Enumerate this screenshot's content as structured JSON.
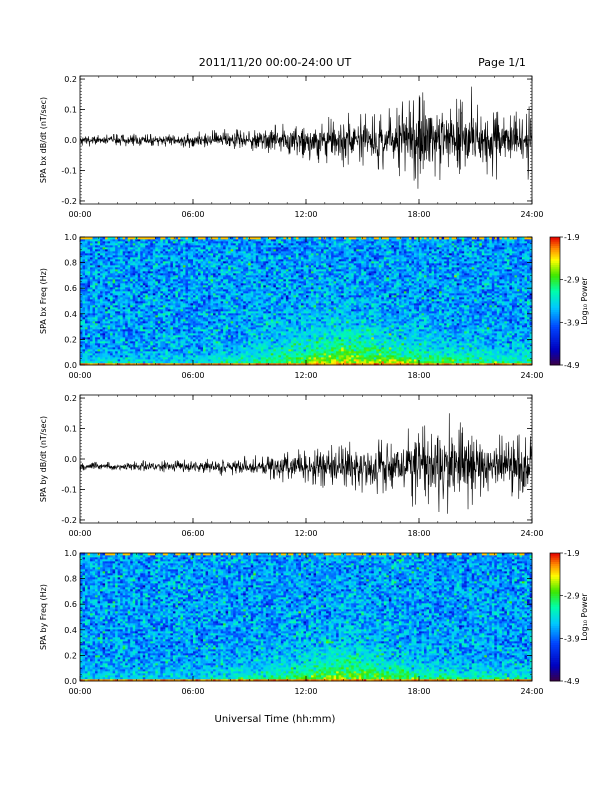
{
  "header": {
    "title": "2011/11/20  00:00-24:00 UT",
    "page": "Page 1/1"
  },
  "xlabel": "Universal Time (hh:mm)",
  "colorbar_label": "Log₁₀ Power",
  "chart_data": [
    {
      "type": "line",
      "name": "bx-dbdt",
      "ylabel": "SPA bx dB/dt (nT/sec)",
      "x_ticks": [
        "00:00",
        "06:00",
        "12:00",
        "18:00",
        "24:00"
      ],
      "y_ticks": [
        -0.2,
        -0.1,
        0.0,
        0.1,
        0.2
      ],
      "y_tick_labels": [
        "-0.2",
        "-0.1",
        "0.0",
        "0.1",
        "0.2"
      ],
      "xlim_hours": [
        0,
        24
      ],
      "ylim": [
        -0.21,
        0.21
      ],
      "baseline": 0.0,
      "envelope": {
        "hours": [
          0,
          2,
          4,
          6,
          8,
          10,
          12,
          14,
          16,
          17,
          18,
          19,
          20,
          21,
          22,
          23,
          24
        ],
        "amplitude": [
          0.012,
          0.012,
          0.013,
          0.015,
          0.022,
          0.03,
          0.04,
          0.05,
          0.06,
          0.075,
          0.09,
          0.085,
          0.075,
          0.07,
          0.075,
          0.07,
          0.065
        ]
      },
      "extremes": [
        {
          "hour": 17.95,
          "value": -0.16
        },
        {
          "hour": 17.7,
          "value": 0.13
        },
        {
          "hour": 20.8,
          "value": 0.175
        },
        {
          "hour": 20.0,
          "value": 0.135
        },
        {
          "hour": 23.8,
          "value": -0.13
        }
      ]
    },
    {
      "type": "heatmap",
      "name": "bx-spectrogram",
      "ylabel": "SPA bx Freq (Hz)",
      "x_ticks": [
        "00:00",
        "06:00",
        "12:00",
        "18:00",
        "24:00"
      ],
      "y_ticks": [
        0.0,
        0.2,
        0.4,
        0.6,
        0.8,
        1.0
      ],
      "y_tick_labels": [
        "0.0",
        "0.2",
        "0.4",
        "0.6",
        "0.8",
        "1.0"
      ],
      "xlim_hours": [
        0,
        24
      ],
      "ylim": [
        0,
        1
      ],
      "colorbar": {
        "min": -4.9,
        "max": -1.9,
        "ticks": [
          -1.9,
          -2.9,
          -3.9,
          -4.9
        ],
        "tick_labels": [
          "-1.9",
          "-2.9",
          "-3.9",
          "-4.9"
        ]
      },
      "background_level": -3.7,
      "low_freq_enhancement": {
        "hours": [
          0,
          6,
          10,
          12,
          14,
          16,
          18,
          20,
          22,
          24
        ],
        "level": [
          -3.2,
          -3.2,
          -2.9,
          -2.6,
          -2.4,
          -2.5,
          -2.6,
          -2.8,
          -3.0,
          -3.1
        ],
        "extent_hz": [
          0.05,
          0.06,
          0.12,
          0.17,
          0.2,
          0.15,
          0.12,
          0.1,
          0.1,
          0.1
        ]
      }
    },
    {
      "type": "line",
      "name": "by-dbdt",
      "ylabel": "SPA by dB/dt (nT/sec)",
      "x_ticks": [
        "00:00",
        "06:00",
        "12:00",
        "18:00",
        "24:00"
      ],
      "y_ticks": [
        -0.2,
        -0.1,
        0.0,
        0.1,
        0.2
      ],
      "y_tick_labels": [
        "-0.2",
        "-0.1",
        "0.0",
        "0.1",
        "0.2"
      ],
      "xlim_hours": [
        0,
        24
      ],
      "ylim": [
        -0.21,
        0.21
      ],
      "baseline": -0.025,
      "envelope": {
        "hours": [
          0,
          2,
          4,
          6,
          8,
          10,
          12,
          14,
          16,
          17,
          18,
          19,
          20,
          21,
          22,
          23,
          24
        ],
        "amplitude": [
          0.01,
          0.01,
          0.012,
          0.013,
          0.018,
          0.025,
          0.035,
          0.045,
          0.055,
          0.065,
          0.08,
          0.09,
          0.085,
          0.075,
          0.07,
          0.065,
          0.06
        ]
      },
      "extremes": [
        {
          "hour": 19.6,
          "value": 0.15
        },
        {
          "hour": 20.2,
          "value": 0.12
        },
        {
          "hour": 20.6,
          "value": -0.165
        },
        {
          "hour": 18.3,
          "value": 0.11
        }
      ]
    },
    {
      "type": "heatmap",
      "name": "by-spectrogram",
      "ylabel": "SPA by Freq (Hz)",
      "x_ticks": [
        "00:00",
        "06:00",
        "12:00",
        "18:00",
        "24:00"
      ],
      "y_ticks": [
        0.0,
        0.2,
        0.4,
        0.6,
        0.8,
        1.0
      ],
      "y_tick_labels": [
        "0.0",
        "0.2",
        "0.4",
        "0.6",
        "0.8",
        "1.0"
      ],
      "xlim_hours": [
        0,
        24
      ],
      "ylim": [
        0,
        1
      ],
      "colorbar": {
        "min": -4.9,
        "max": -1.9,
        "ticks": [
          -1.9,
          -2.9,
          -3.9,
          -4.9
        ],
        "tick_labels": [
          "-1.9",
          "-2.9",
          "-3.9",
          "-4.9"
        ]
      },
      "background_level": -3.7,
      "low_freq_enhancement": {
        "hours": [
          0,
          6,
          10,
          12,
          14,
          16,
          18,
          20,
          22,
          24
        ],
        "level": [
          -3.3,
          -3.3,
          -3.0,
          -2.7,
          -2.5,
          -2.6,
          -2.8,
          -2.9,
          -3.0,
          -3.1
        ],
        "extent_hz": [
          0.04,
          0.05,
          0.1,
          0.15,
          0.18,
          0.14,
          0.1,
          0.08,
          0.08,
          0.08
        ]
      }
    }
  ]
}
